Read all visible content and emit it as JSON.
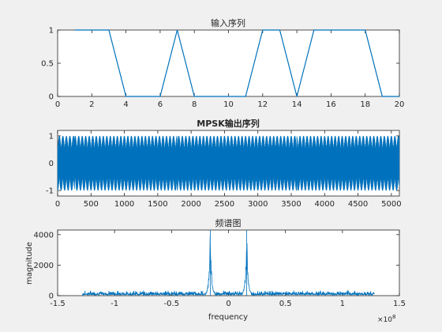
{
  "figure": {
    "series_color": "#0072BD"
  },
  "chart_data": [
    {
      "type": "line",
      "title": "输入序列",
      "xlabel": "",
      "ylabel": "",
      "xlim": [
        0,
        20
      ],
      "ylim": [
        0,
        1
      ],
      "xticks": [
        0,
        2,
        4,
        6,
        8,
        10,
        12,
        14,
        16,
        18,
        20
      ],
      "xtick_labels": [
        "0",
        "2",
        "4",
        "6",
        "8",
        "10",
        "12",
        "14",
        "16",
        "18",
        "20"
      ],
      "yticks": [
        0,
        0.5,
        1
      ],
      "ytick_labels": [
        "0",
        "0.5",
        "1"
      ],
      "grid": false,
      "series": [
        {
          "x": [
            1,
            2,
            3,
            4,
            5,
            6,
            7,
            8,
            9,
            10,
            11,
            12,
            13,
            14,
            15,
            16,
            17,
            18,
            19,
            20
          ],
          "values": [
            1,
            1,
            1,
            0,
            0,
            0,
            1,
            0,
            0,
            0,
            0,
            1,
            1,
            0,
            1,
            1,
            1,
            1,
            0,
            0
          ]
        }
      ]
    },
    {
      "type": "line",
      "title": "MPSK输出序列",
      "xlabel": "",
      "ylabel": "",
      "xlim": [
        0,
        5120
      ],
      "ylim": [
        -1.2,
        1.2
      ],
      "xticks": [
        0,
        500,
        1000,
        1500,
        2000,
        2500,
        3000,
        3500,
        4000,
        4500,
        5000
      ],
      "xtick_labels": [
        "0",
        "500",
        "1000",
        "1500",
        "2000",
        "2500",
        "3000",
        "3500",
        "4000",
        "4500",
        "5000"
      ],
      "yticks": [
        -1,
        0,
        1
      ],
      "ytick_labels": [
        "-1",
        "0",
        "1"
      ],
      "grid": false,
      "series": [
        {
          "description_of_values": "dense oscillating carrier samples spanning -1 to 1 across all 5120 samples",
          "sample_count": 5120,
          "amplitude": 1
        }
      ]
    },
    {
      "type": "line",
      "title": "频谱图",
      "xlabel": "frequency",
      "ylabel": "magnitude",
      "xlim": [
        -1.5,
        1.5
      ],
      "ylim": [
        0,
        4300
      ],
      "x_exponent_label": "×10",
      "x_exponent_power": "8",
      "xticks": [
        -1.5,
        -1,
        -0.5,
        0,
        0.5,
        1,
        1.5
      ],
      "xtick_labels": [
        "-1.5",
        "-1",
        "-0.5",
        "0",
        "0.5",
        "1",
        "1.5"
      ],
      "yticks": [
        0,
        2000,
        4000
      ],
      "ytick_labels": [
        "0",
        "2000",
        "4000"
      ],
      "grid": false,
      "series": [
        {
          "x_range": [
            -1.28,
            1.28
          ],
          "noise_floor": [
            50,
            350
          ],
          "peaks": [
            {
              "x": -0.16,
              "value": 4300
            },
            {
              "x": 0.16,
              "value": 4300
            }
          ]
        }
      ]
    }
  ]
}
